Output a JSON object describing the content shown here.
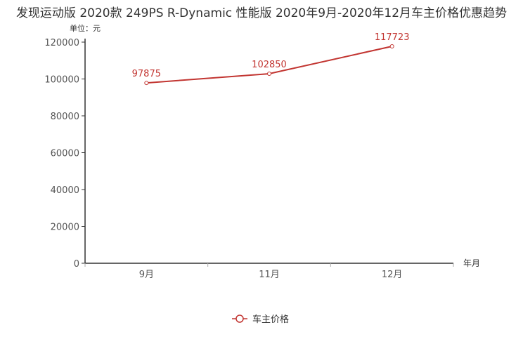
{
  "chart_data": {
    "type": "line",
    "title": "发现运动版 2020款 249PS R-Dynamic 性能版 2020年9月-2020年12月车主价格优惠趋势",
    "ylabel": "单位：元",
    "xlabel": "年月",
    "categories": [
      "9月",
      "11月",
      "12月"
    ],
    "series": [
      {
        "name": "车主价格",
        "values": [
          97875,
          102850,
          117723
        ],
        "color": "#c23531"
      }
    ],
    "ylim": [
      0,
      120000
    ],
    "yticks": [
      0,
      20000,
      40000,
      60000,
      80000,
      100000,
      120000
    ],
    "grid": false,
    "legend_position": "bottom-center"
  }
}
